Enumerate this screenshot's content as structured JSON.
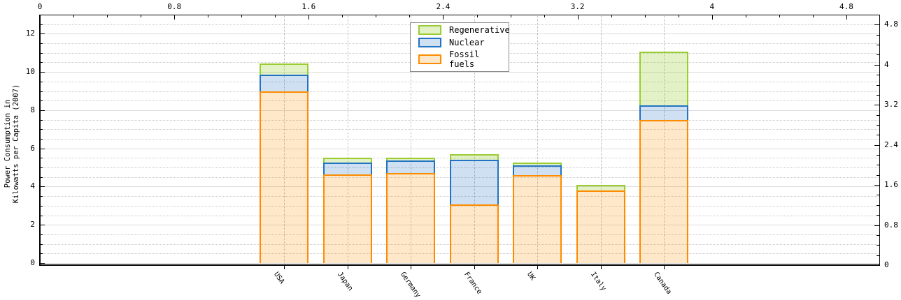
{
  "chart_data": {
    "type": "bar",
    "stacked": true,
    "title": "",
    "categories": [
      "USA",
      "Japan",
      "Germany",
      "France",
      "UK",
      "Italy",
      "Canada"
    ],
    "series": [
      {
        "name": "Fossil fuels",
        "values": [
          9.0,
          4.65,
          4.7,
          3.05,
          4.6,
          3.8,
          7.5
        ],
        "stroke": "#ff8c00",
        "fill": "rgba(255,140,0,0.21)"
      },
      {
        "name": "Nuclear",
        "values": [
          0.85,
          0.6,
          0.65,
          2.35,
          0.5,
          0,
          0.75
        ],
        "stroke": "#2273c3",
        "fill": "rgba(34,115,195,0.22)"
      },
      {
        "name": "Regenerative",
        "values": [
          0.6,
          0.25,
          0.15,
          0.3,
          0.15,
          0.3,
          2.8
        ],
        "stroke": "#9acd32",
        "fill": "rgba(154,205,50,0.28)"
      }
    ],
    "ylabel": "Power Consumption in Kilowatts per Capita (2007)",
    "ylabel_lines": [
      "Power Consumption in",
      "Kilowatts per Capita (2007)"
    ],
    "xlabel": "",
    "left_axis": {
      "tick_labels": [
        "0",
        "2",
        "4",
        "6",
        "8",
        "10",
        "12"
      ],
      "range": [
        0,
        13.1
      ],
      "minor_step": 0.5
    },
    "right_axis": {
      "tick_labels": [
        "0",
        "0.8",
        "1.6",
        "2.4",
        "3.2",
        "4",
        "4.8"
      ],
      "range": [
        0,
        5
      ],
      "minor_step": 0.2
    },
    "top_axis": {
      "tick_labels": [
        "0",
        "0.8",
        "1.6",
        "2.4",
        "3.2",
        "4",
        "4.8"
      ],
      "range": [
        0,
        5
      ],
      "minor_step": 0.2
    },
    "legend": {
      "position": "upper center",
      "entries": [
        "Regenerative",
        "Nuclear",
        "Fossil fuels"
      ]
    },
    "grid": {
      "h_major": "solid",
      "h_minor": "dotted",
      "v_category": "dotted",
      "legend_border": "#8c8c8c"
    }
  }
}
